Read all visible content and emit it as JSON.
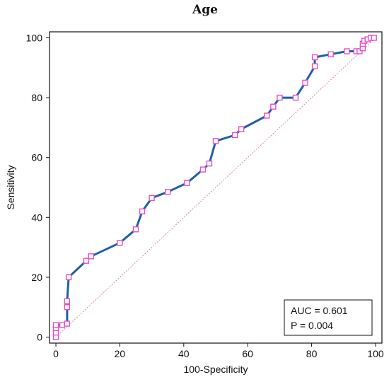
{
  "chart_data": {
    "type": "line",
    "title": "Age",
    "xlabel": "100-Specificity",
    "ylabel": "Sensitivity",
    "xlim": [
      -2,
      102
    ],
    "ylim": [
      -2,
      102
    ],
    "xticks": [
      0,
      20,
      40,
      60,
      80,
      100
    ],
    "yticks": [
      0,
      20,
      40,
      60,
      80,
      100
    ],
    "grid": false,
    "series": [
      {
        "line_color": "#1f5fa8",
        "marker_color": "#e64ec9",
        "x": [
          0,
          0,
          0,
          0,
          2,
          3.5,
          3.5,
          3.5,
          4,
          9.5,
          11,
          20,
          25,
          27,
          30,
          35,
          41,
          46,
          48,
          50,
          56,
          58,
          66,
          68,
          70,
          75,
          78,
          81,
          81,
          86,
          91,
          94,
          95,
          96,
          96,
          96.5,
          97.5,
          98.5,
          99.5
        ],
        "y": [
          0,
          1.5,
          3,
          4,
          4,
          4.5,
          10,
          12,
          20,
          25.5,
          27,
          31.5,
          36,
          42,
          46.5,
          48.5,
          51.5,
          56,
          58,
          65.5,
          67.5,
          69.5,
          74,
          77,
          80,
          80,
          85,
          90.5,
          93.5,
          94.5,
          95.5,
          95.5,
          95.5,
          96.5,
          98,
          99,
          99.5,
          100,
          100
        ]
      }
    ],
    "reference_line": {
      "from": [
        0,
        0
      ],
      "to": [
        100,
        100
      ],
      "color": "#d98c8c"
    },
    "legend_position": "bottom-right",
    "legend": {
      "auc_text": "AUC = 0.601",
      "p_text": "P = 0.004"
    },
    "tick_labels": {
      "x": [
        "0",
        "20",
        "40",
        "60",
        "80",
        "100"
      ],
      "y": [
        "0",
        "20",
        "40",
        "60",
        "80",
        "100"
      ]
    }
  }
}
